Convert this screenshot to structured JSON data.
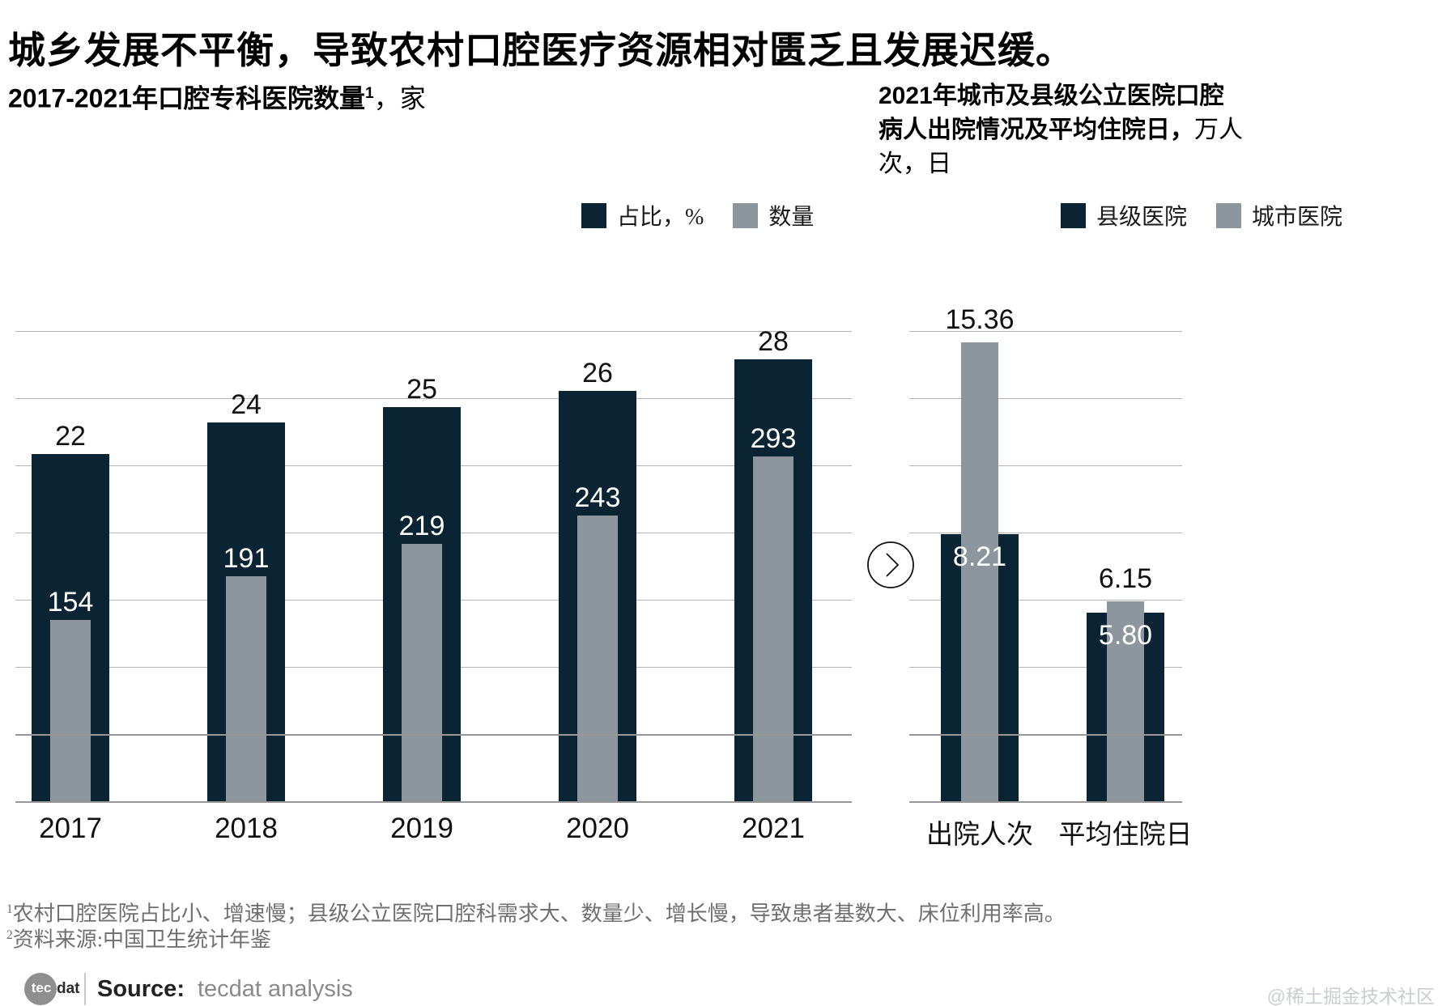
{
  "page": {
    "title": "城乡发展不平衡，导致农村口腔医疗资源相对匮乏且发展迟缓。",
    "watermark": "@稀土掘金技术社区"
  },
  "colors": {
    "dark": "#0a2433",
    "gray": "#8e969d",
    "gridline": "#b4b4b4",
    "gridline_front": "#979797",
    "label_black": "#111111",
    "label_white": "#ffffff"
  },
  "icons": {
    "divider": "chevron-right-circle"
  },
  "chart_data": [
    {
      "type": "bar",
      "title_bold": "2017-2021年口腔专科医院数量",
      "title_sup": "1",
      "title_unit": "，家",
      "legend": [
        {
          "label": "占比，%",
          "color": "#0a2433"
        },
        {
          "label": "数量",
          "color": "#8e969d"
        }
      ],
      "categories": [
        "2017",
        "2018",
        "2019",
        "2020",
        "2021"
      ],
      "series": [
        {
          "name": "占比，%",
          "values": [
            22,
            24,
            25,
            26,
            28
          ],
          "labels": [
            "22",
            "24",
            "25",
            "26",
            "28"
          ],
          "color": "#0a2433",
          "label_color": "#111111",
          "label_pos": "above",
          "ylim": [
            0,
            30
          ]
        },
        {
          "name": "数量",
          "values": [
            154,
            191,
            219,
            243,
            293
          ],
          "labels": [
            "154",
            "191",
            "219",
            "243",
            "293"
          ],
          "color": "#8e969d",
          "label_color": "#ffffff",
          "label_pos": "above",
          "ylim": [
            0,
            400
          ]
        }
      ],
      "grid": true,
      "legend_position": "top-right"
    },
    {
      "type": "bar",
      "title_bold": "2021年城市及县级公立医院口腔病人出院情况及平均住院日，",
      "title_sup": "",
      "title_unit": "万人次，日",
      "legend": [
        {
          "label": "县级医院",
          "color": "#0a2433"
        },
        {
          "label": "城市医院",
          "color": "#8e969d"
        }
      ],
      "categories": [
        "出院人次",
        "平均住院日"
      ],
      "series": [
        {
          "name": "县级医院",
          "values": [
            8.21,
            5.8
          ],
          "labels": [
            "8.21",
            "5.80"
          ],
          "color": "#0a2433",
          "label_color": "#ffffff",
          "label_pos": "inside",
          "ylim": [
            0,
            14.5
          ]
        },
        {
          "name": "城市医院",
          "values": [
            15.36,
            6.15
          ],
          "labels": [
            "15.36",
            "6.15"
          ],
          "color": "#8e969d",
          "label_color": "#111111",
          "label_pos": "above",
          "ylim": [
            0,
            14.5
          ]
        }
      ],
      "grid": true,
      "legend_position": "top-right"
    }
  ],
  "footnotes": [
    {
      "sup": "1",
      "text": "农村口腔医院占比小、增速慢；县级公立医院口腔科需求大、数量少、增长慢，导致患者基数大、床位利用率高。"
    },
    {
      "sup": "2",
      "text": "资料来源:中国卫生统计年鉴"
    }
  ],
  "source_row": {
    "logo_tec": "tec",
    "logo_dat": "dat",
    "source_label": "Source:",
    "source_value": "tecdat analysis"
  }
}
